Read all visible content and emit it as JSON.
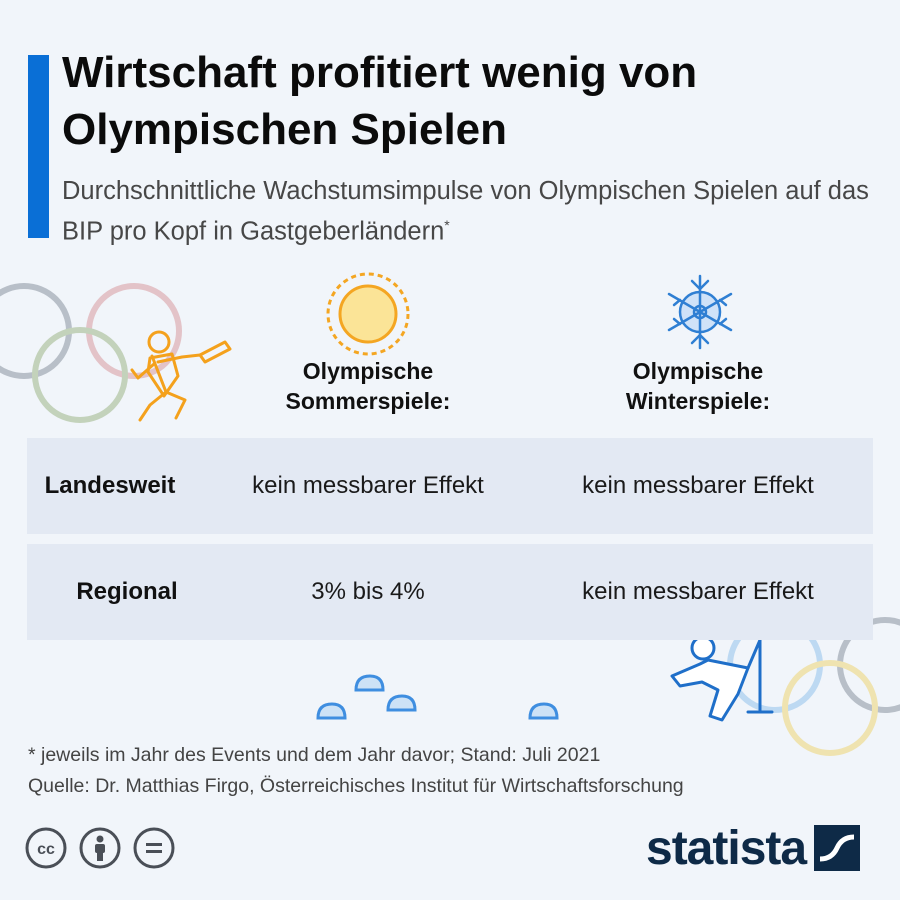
{
  "header": {
    "title": "Wirtschaft profitiert wenig von Olympischen Spielen",
    "subtitle": "Durchschnittliche Wachstumsimpulse von Olympischen Spielen auf das BIP pro Kopf in Gastgeberländern",
    "subtitle_marker": "*"
  },
  "columns": {
    "summer": "Olympische Sommerspiele:",
    "winter": "Olympische Winterspiele:"
  },
  "rows": [
    {
      "label": "Landesweit",
      "summer": "kein messbarer Effekt",
      "winter": "kein messbarer Effekt"
    },
    {
      "label": "Regional",
      "summer": "3% bis 4%",
      "winter": "kein messbarer Effekt"
    }
  ],
  "footer": {
    "footnote": "* jeweils im Jahr des Events und dem Jahr davor; Stand: Juli 2021",
    "source": "Quelle: Dr. Matthias Firgo, Österreichisches Institut für Wirtschaftsforschung"
  },
  "branding": {
    "logo": "statista"
  },
  "icons": [
    "olympic-rings-icon",
    "runner-icon",
    "sun-icon",
    "snowflake-icon",
    "curling-stone-icon",
    "curling-player-icon",
    "cc-icon",
    "by-icon",
    "nd-icon",
    "statista-logo-icon"
  ],
  "colors": {
    "accent": "#0a6fd6",
    "row_bg": "#e3e9f3",
    "background": "#f1f5fa",
    "brand": "#0e2a47",
    "sun": "#f4a622",
    "snow": "#2f7fd3"
  }
}
